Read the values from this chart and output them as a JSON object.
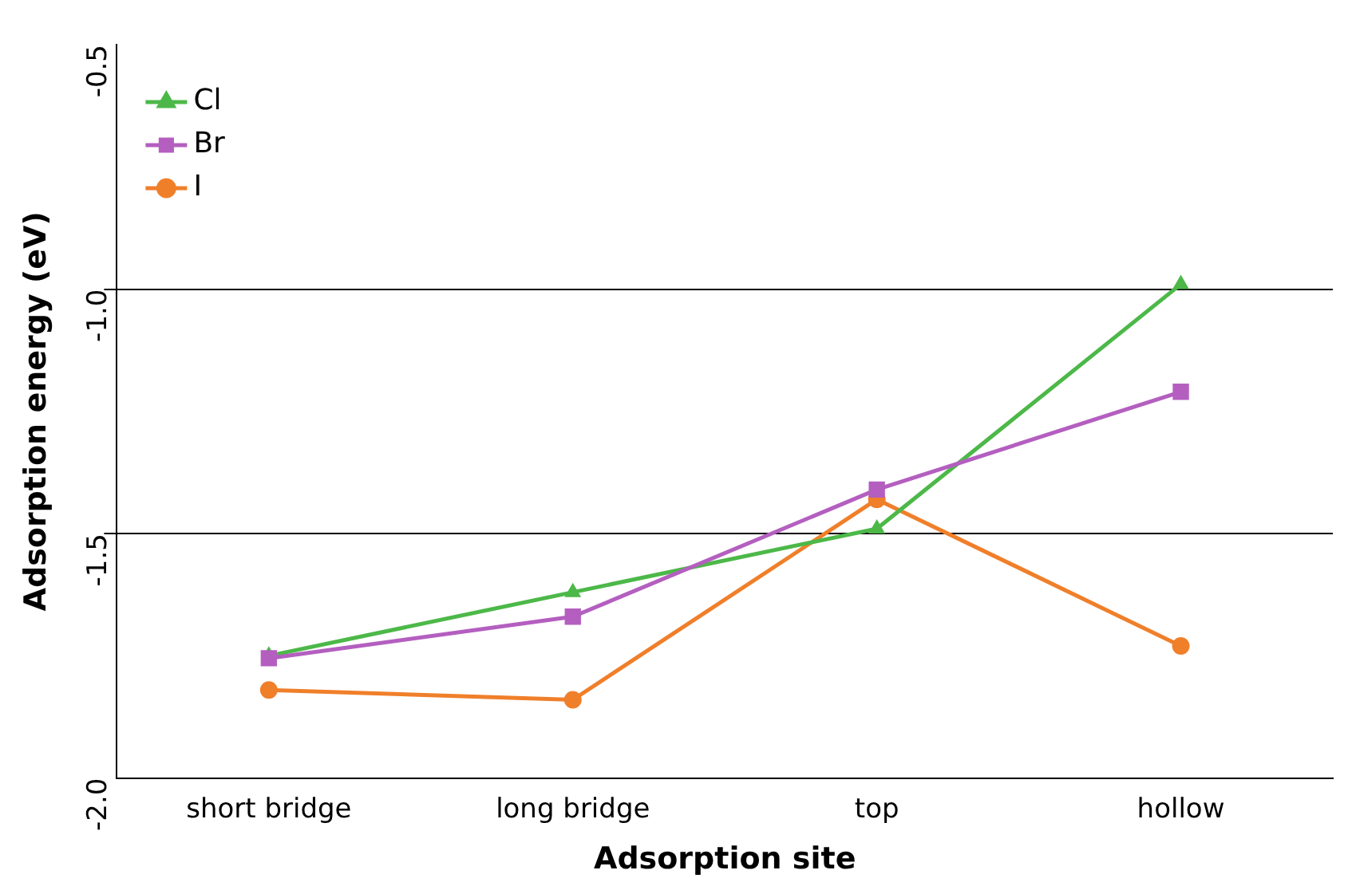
{
  "chart_data": {
    "type": "line",
    "xlabel": "Adsorption site",
    "ylabel": "Adsorption energy (eV)",
    "categories": [
      "short bridge",
      "long bridge",
      "top",
      "hollow"
    ],
    "series": [
      {
        "name": "Cl",
        "color": "#4cb848",
        "marker": "triangle",
        "values": [
          -1.75,
          -1.62,
          -1.49,
          -0.99
        ]
      },
      {
        "name": "Br",
        "color": "#b45fc0",
        "marker": "square",
        "values": [
          -1.755,
          -1.67,
          -1.41,
          -1.21
        ]
      },
      {
        "name": "I",
        "color": "#f07f2a",
        "marker": "circle",
        "values": [
          -1.82,
          -1.84,
          -1.43,
          -1.73
        ]
      }
    ],
    "ylim": [
      -2.0,
      -0.5
    ],
    "yticks": [
      {
        "value": -2.0,
        "label": "-2.0"
      },
      {
        "value": -1.5,
        "label": "-1.5"
      },
      {
        "value": -1.0,
        "label": "-1.0"
      },
      {
        "value": -0.5,
        "label": "-0.5"
      }
    ],
    "grid": "y",
    "legend": "top left",
    "line_style": "solid"
  }
}
